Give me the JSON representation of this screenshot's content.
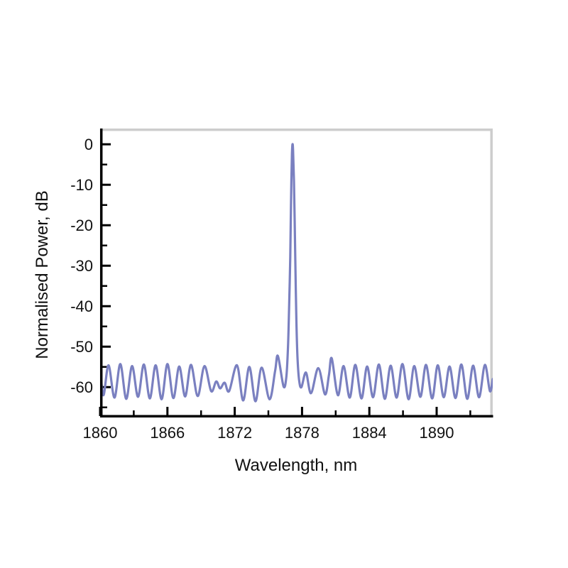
{
  "figure": {
    "xlabel": "Wavelength, nm",
    "ylabel": "Normalised Power, dB"
  },
  "chart_data": {
    "type": "line",
    "title": "",
    "xlabel": "Wavelength, nm",
    "ylabel": "Normalised Power, dB",
    "xlim": [
      1860,
      1895
    ],
    "ylim": [
      -67.5,
      3.9
    ],
    "x_major_ticks": [
      1860,
      1866,
      1872,
      1878,
      1884,
      1890
    ],
    "x_minor_ticks": [
      1863,
      1869,
      1875,
      1881,
      1887,
      1893
    ],
    "y_major_ticks": [
      0,
      -10,
      -20,
      -30,
      -40,
      -50,
      -60
    ],
    "y_minor_ticks": [
      -5,
      -15,
      -25,
      -35,
      -45,
      -55,
      -65
    ],
    "grid": false,
    "legend": null,
    "line_color": "#7a80c0",
    "frame_color": "#cdcdcd",
    "axis_color": "#000000",
    "main_peak": {
      "x": 1877.15,
      "y_dB": 0
    },
    "baseline_ripple": {
      "period_nm": 1.05,
      "peak_level_dB": -54.6,
      "trough_level_dB": -62.7
    },
    "side_lobes": [
      {
        "x": 1875.85,
        "y_dB": -52.3
      },
      {
        "x": 1880.65,
        "y_dB": -52.9
      }
    ],
    "points": [
      [
        1860.0,
        -55.2
      ],
      [
        1860.3,
        -62.0
      ],
      [
        1860.75,
        -54.6
      ],
      [
        1861.28,
        -62.6
      ],
      [
        1861.8,
        -54.3
      ],
      [
        1862.33,
        -62.9
      ],
      [
        1862.85,
        -54.8
      ],
      [
        1863.38,
        -62.4
      ],
      [
        1863.9,
        -54.4
      ],
      [
        1864.43,
        -62.8
      ],
      [
        1864.95,
        -54.6
      ],
      [
        1865.48,
        -63.0
      ],
      [
        1866.0,
        -54.3
      ],
      [
        1866.53,
        -62.7
      ],
      [
        1867.05,
        -54.9
      ],
      [
        1867.58,
        -62.3
      ],
      [
        1868.1,
        -54.5
      ],
      [
        1868.7,
        -62.2
      ],
      [
        1869.3,
        -54.8
      ],
      [
        1869.9,
        -61.0
      ],
      [
        1870.35,
        -58.6
      ],
      [
        1870.7,
        -60.3
      ],
      [
        1871.1,
        -58.9
      ],
      [
        1871.5,
        -61.0
      ],
      [
        1872.2,
        -54.6
      ],
      [
        1872.75,
        -63.3
      ],
      [
        1873.3,
        -55.0
      ],
      [
        1873.85,
        -63.5
      ],
      [
        1874.4,
        -55.2
      ],
      [
        1875.1,
        -63.0
      ],
      [
        1875.6,
        -56.0
      ],
      [
        1875.85,
        -52.3
      ],
      [
        1876.35,
        -59.8
      ],
      [
        1876.6,
        -57.5
      ],
      [
        1876.75,
        -50.0
      ],
      [
        1876.85,
        -40.0
      ],
      [
        1876.95,
        -28.0
      ],
      [
        1877.0,
        -18.0
      ],
      [
        1877.05,
        -9.0
      ],
      [
        1877.1,
        -2.5
      ],
      [
        1877.15,
        0.0
      ],
      [
        1877.2,
        -1.5
      ],
      [
        1877.28,
        -9.0
      ],
      [
        1877.35,
        -20.0
      ],
      [
        1877.42,
        -32.0
      ],
      [
        1877.5,
        -44.0
      ],
      [
        1877.6,
        -53.0
      ],
      [
        1877.75,
        -58.5
      ],
      [
        1877.95,
        -60.0
      ],
      [
        1878.35,
        -56.4
      ],
      [
        1878.8,
        -61.5
      ],
      [
        1879.45,
        -55.3
      ],
      [
        1880.05,
        -61.8
      ],
      [
        1880.4,
        -57.0
      ],
      [
        1880.65,
        -52.9
      ],
      [
        1881.2,
        -62.0
      ],
      [
        1881.7,
        -54.8
      ],
      [
        1882.25,
        -62.6
      ],
      [
        1882.75,
        -54.5
      ],
      [
        1883.3,
        -62.8
      ],
      [
        1883.8,
        -54.9
      ],
      [
        1884.33,
        -62.5
      ],
      [
        1884.85,
        -54.4
      ],
      [
        1885.38,
        -62.9
      ],
      [
        1885.9,
        -54.7
      ],
      [
        1886.43,
        -62.6
      ],
      [
        1886.95,
        -54.3
      ],
      [
        1887.5,
        -63.0
      ],
      [
        1888.0,
        -54.8
      ],
      [
        1888.55,
        -62.4
      ],
      [
        1889.05,
        -54.5
      ],
      [
        1889.6,
        -62.8
      ],
      [
        1890.1,
        -54.6
      ],
      [
        1890.63,
        -62.5
      ],
      [
        1891.15,
        -54.9
      ],
      [
        1891.68,
        -62.7
      ],
      [
        1892.2,
        -54.4
      ],
      [
        1892.73,
        -62.9
      ],
      [
        1893.25,
        -54.7
      ],
      [
        1893.78,
        -62.5
      ],
      [
        1894.3,
        -54.5
      ],
      [
        1894.75,
        -61.0
      ],
      [
        1895.0,
        -58.0
      ]
    ]
  }
}
